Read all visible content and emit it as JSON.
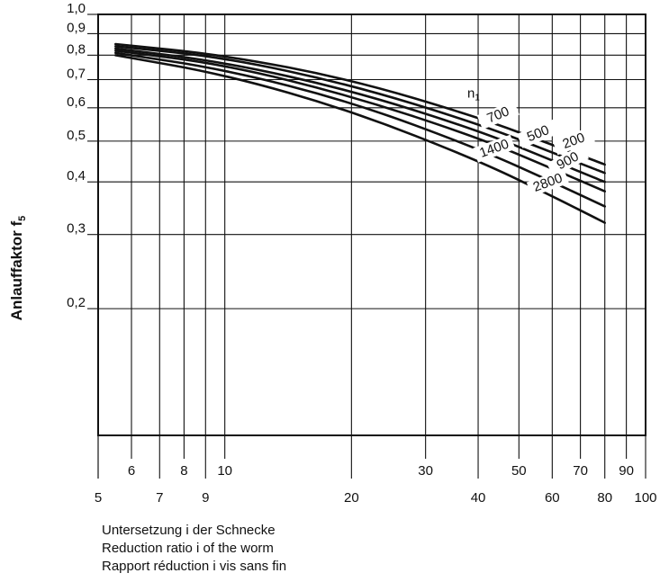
{
  "chart_data": {
    "type": "line",
    "ylabel": "Anlauffaktor f",
    "ylabel_sub": "5",
    "x_scale": "log",
    "y_scale": "log",
    "xlim": [
      5,
      100
    ],
    "ylim": [
      0.1,
      1.0
    ],
    "x_ticks_major": [
      5,
      7,
      9,
      20,
      40,
      60,
      80,
      100
    ],
    "x_ticks_minor": [
      6,
      8,
      10,
      30,
      50,
      70,
      90
    ],
    "y_ticks": [
      {
        "value": 1.0,
        "label": "1,0"
      },
      {
        "value": 0.9,
        "label": "0,9"
      },
      {
        "value": 0.8,
        "label": "0,8"
      },
      {
        "value": 0.7,
        "label": "0,7"
      },
      {
        "value": 0.6,
        "label": "0,6"
      },
      {
        "value": 0.5,
        "label": "0,5"
      },
      {
        "value": 0.4,
        "label": "0,4"
      },
      {
        "value": 0.3,
        "label": "0,3"
      },
      {
        "value": 0.2,
        "label": "0,2"
      }
    ],
    "grid": true,
    "series_param_label": "n",
    "series_param_sub": "1",
    "series": [
      {
        "name": "200",
        "x": [
          5.5,
          10,
          20,
          40,
          60,
          80
        ],
        "y": [
          0.85,
          0.8,
          0.7,
          0.57,
          0.49,
          0.44
        ]
      },
      {
        "name": "500",
        "x": [
          5.5,
          10,
          20,
          40,
          60,
          80
        ],
        "y": [
          0.84,
          0.79,
          0.68,
          0.55,
          0.47,
          0.42
        ]
      },
      {
        "name": "700",
        "x": [
          5.5,
          10,
          20,
          40,
          60,
          80
        ],
        "y": [
          0.83,
          0.77,
          0.66,
          0.53,
          0.45,
          0.4
        ]
      },
      {
        "name": "900",
        "x": [
          5.5,
          10,
          20,
          40,
          60,
          80
        ],
        "y": [
          0.82,
          0.76,
          0.64,
          0.51,
          0.43,
          0.38
        ]
      },
      {
        "name": "1400",
        "x": [
          5.5,
          10,
          20,
          40,
          60,
          80
        ],
        "y": [
          0.81,
          0.74,
          0.62,
          0.48,
          0.4,
          0.35
        ]
      },
      {
        "name": "2800",
        "x": [
          5.5,
          10,
          20,
          40,
          60,
          80
        ],
        "y": [
          0.8,
          0.72,
          0.59,
          0.45,
          0.37,
          0.32
        ]
      }
    ]
  },
  "caption": {
    "line1": "Untersetzung i der Schnecke",
    "line2": "Reduction ratio i of the worm",
    "line3": "Rapport réduction i vis sans fin"
  }
}
